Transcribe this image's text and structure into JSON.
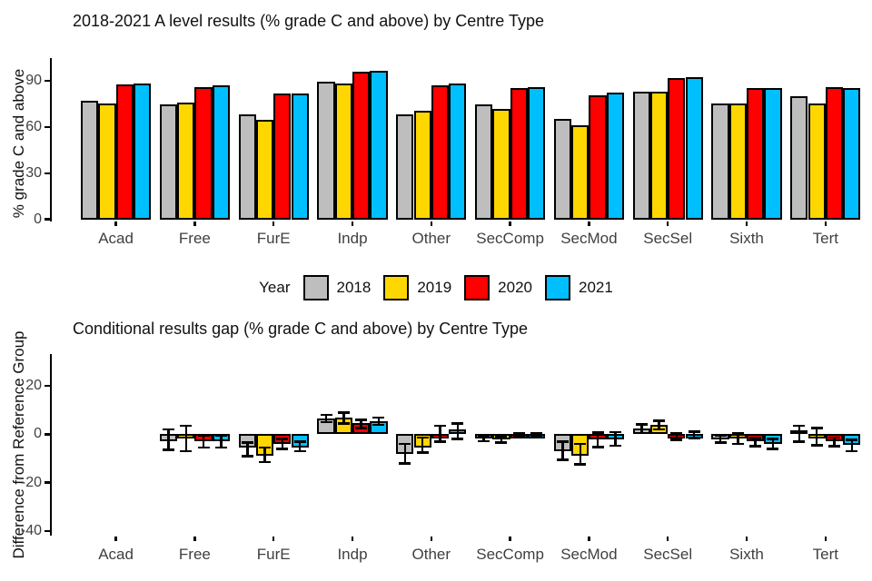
{
  "legend": {
    "title": "Year"
  },
  "chart_data": [
    {
      "type": "bar",
      "title": "2018-2021 A level results (% grade C and above) by Centre Type",
      "xlabel": "",
      "ylabel": "% grade C and above",
      "categories": [
        "Acad",
        "Free",
        "FurE",
        "Indp",
        "Other",
        "SecComp",
        "SecMod",
        "SecSel",
        "Sixth",
        "Tert"
      ],
      "yticks": [
        90,
        60,
        30,
        0
      ],
      "ylim": [
        0,
        105
      ],
      "grid": false,
      "legend_position": "bottom",
      "series": [
        {
          "name": "2018",
          "color": "#BEBEBE",
          "values": [
            77,
            74.5,
            68,
            89.5,
            68,
            74.5,
            65,
            83,
            75.5,
            80
          ]
        },
        {
          "name": "2019",
          "color": "#FFD700",
          "values": [
            75.5,
            76,
            64.5,
            88.5,
            70.5,
            72,
            61,
            83,
            75,
            75
          ]
        },
        {
          "name": "2020",
          "color": "#FF0000",
          "values": [
            87.5,
            86,
            81.5,
            96,
            87,
            85.5,
            80.5,
            91.5,
            85,
            86
          ]
        },
        {
          "name": "2021",
          "color": "#00BFFF",
          "values": [
            88,
            87,
            82,
            96.5,
            88,
            86,
            82.5,
            92.5,
            85.5,
            85.5
          ]
        }
      ]
    },
    {
      "type": "bar",
      "title": "Conditional results gap (% grade C and above) by Centre Type",
      "xlabel": "",
      "ylabel": "Difference from Reference Group",
      "categories": [
        "Acad",
        "Free",
        "FurE",
        "Indp",
        "Other",
        "SecComp",
        "SecMod",
        "SecSel",
        "Sixth",
        "Tert"
      ],
      "yticks": [
        20,
        0,
        -20,
        -40
      ],
      "ylim": [
        -45,
        32
      ],
      "grid": false,
      "reference_group": "Acad",
      "error_bars": true,
      "series": [
        {
          "name": "2018",
          "color": "#BEBEBE",
          "values": [
            null,
            -3,
            -5.5,
            6.5,
            -8,
            -1.5,
            -7,
            2.3,
            -2,
            0.5
          ],
          "ci_low": [
            null,
            -6.5,
            -9,
            5,
            -12,
            -2.8,
            -10.5,
            0.5,
            -3.5,
            -3
          ],
          "ci_high": [
            null,
            2,
            -3.5,
            8,
            -4,
            -0.5,
            -3,
            4,
            -0.5,
            3.5
          ]
        },
        {
          "name": "2019",
          "color": "#FFD700",
          "values": [
            null,
            -1.5,
            -9,
            7,
            -5.5,
            -2,
            -9,
            3.8,
            -1.6,
            -1.3
          ],
          "ci_low": [
            null,
            -7,
            -11.5,
            4.5,
            -7.5,
            -3.4,
            -12.5,
            2,
            -4,
            -4.5
          ],
          "ci_high": [
            null,
            3.5,
            -5.5,
            9,
            -1.3,
            -0.8,
            -4,
            5.5,
            0.5,
            2.5
          ]
        },
        {
          "name": "2020",
          "color": "#FF0000",
          "values": [
            null,
            -3,
            -4,
            4.5,
            -0.3,
            -0.3,
            -2.3,
            -0.8,
            -3,
            -3
          ],
          "ci_low": [
            null,
            -5.5,
            -6,
            2.5,
            -3,
            -1,
            -5.3,
            -2.3,
            -5,
            -5
          ],
          "ci_high": [
            null,
            -0.5,
            -2,
            6,
            3.5,
            0.5,
            0.6,
            0.5,
            -1.5,
            -1.3
          ]
        },
        {
          "name": "2021",
          "color": "#00BFFF",
          "values": [
            null,
            -3,
            -5.5,
            5.3,
            2,
            -0.3,
            -2,
            -0.4,
            -4,
            -4.5
          ],
          "ci_low": [
            null,
            -5.5,
            -7,
            3.8,
            -2,
            -1,
            -4.7,
            -1.5,
            -6,
            -7
          ],
          "ci_high": [
            null,
            -0.5,
            -3,
            6.8,
            4.5,
            0.5,
            0.9,
            1,
            -2,
            -2.3
          ]
        }
      ]
    }
  ]
}
